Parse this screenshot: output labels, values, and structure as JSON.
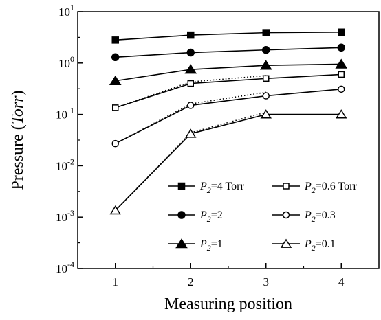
{
  "chart_data": {
    "type": "line",
    "xlabel": "Measuring position",
    "ylabel": "Pressure (Torr)",
    "ylabel_parts": {
      "prefix": "Pressure (",
      "unit": "Torr",
      "suffix": ")"
    },
    "y_scale": "log",
    "ylim": [
      0.0001,
      10
    ],
    "xlim": [
      0.5,
      4.5
    ],
    "x": [
      1,
      2,
      3,
      4
    ],
    "x_tick_labels": [
      "1",
      "2",
      "3",
      "4"
    ],
    "y_ticks": [
      {
        "value": 10,
        "base": "10",
        "exp": "1"
      },
      {
        "value": 1,
        "base": "10",
        "exp": "0"
      },
      {
        "value": 0.1,
        "base": "10",
        "exp": "-1"
      },
      {
        "value": 0.01,
        "base": "10",
        "exp": "-2"
      },
      {
        "value": 0.001,
        "base": "10",
        "exp": "-3"
      },
      {
        "value": 0.0001,
        "base": "10",
        "exp": "-4"
      }
    ],
    "grid": false,
    "legend_position": "bottom-right, two columns",
    "series": [
      {
        "name": "P2=4 Torr",
        "legend": {
          "sym": "P",
          "sub": "2",
          "rest": "=4 Torr"
        },
        "marker": "square-filled",
        "values": [
          2.8,
          3.5,
          3.9,
          4.0
        ]
      },
      {
        "name": "P2=2",
        "legend": {
          "sym": "P",
          "sub": "2",
          "rest": "=2"
        },
        "marker": "circle-filled",
        "values": [
          1.3,
          1.6,
          1.8,
          2.0
        ]
      },
      {
        "name": "P2=1",
        "legend": {
          "sym": "P",
          "sub": "2",
          "rest": "=1"
        },
        "marker": "triangle-filled",
        "values": [
          0.45,
          0.75,
          0.9,
          0.95
        ]
      },
      {
        "name": "P2=0.6 Torr",
        "legend": {
          "sym": "P",
          "sub": "2",
          "rest": "=0.6 Torr"
        },
        "marker": "square-open",
        "values": [
          0.135,
          0.4,
          0.5,
          0.6
        ],
        "dotted_values": [
          0.135,
          0.43,
          0.57
        ]
      },
      {
        "name": "P2=0.3",
        "legend": {
          "sym": "P",
          "sub": "2",
          "rest": "=0.3"
        },
        "marker": "circle-open",
        "values": [
          0.027,
          0.15,
          0.23,
          0.31
        ],
        "dotted_values": [
          0.027,
          0.16,
          0.27
        ]
      },
      {
        "name": "P2=0.1",
        "legend": {
          "sym": "P",
          "sub": "2",
          "rest": "=0.1"
        },
        "marker": "triangle-open",
        "values": [
          0.00135,
          0.042,
          0.1,
          0.1
        ],
        "dotted_values": [
          0.00135,
          0.044,
          0.11
        ]
      }
    ]
  }
}
